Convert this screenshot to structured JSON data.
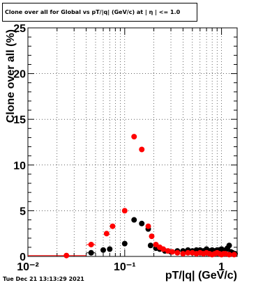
{
  "title": "Clone  over all for Global vs pT/|q| (GeV/c) at | η | <= 1.0",
  "timestamp": "Tue Dec 21 13:13:29 2021",
  "chart_data": {
    "type": "scatter",
    "xlabel": "pT/|q| (GeV/c)",
    "ylabel": "Clone  over all (%)",
    "xscale": "log",
    "xlim": [
      0.01,
      1.45
    ],
    "ylim": [
      0,
      25
    ],
    "grid": true,
    "x_ticks": [
      "10⁻²",
      "10⁻¹",
      "1"
    ],
    "y_ticks": [
      "0",
      "5",
      "10",
      "15",
      "20",
      "25"
    ],
    "series": [
      {
        "color": "#000000",
        "points": [
          {
            "x": 0.045,
            "y": 0.4,
            "xerr": [
              0.04,
              0.05
            ]
          },
          {
            "x": 0.06,
            "y": 0.7
          },
          {
            "x": 0.07,
            "y": 0.8
          },
          {
            "x": 0.1,
            "y": 1.4
          },
          {
            "x": 0.125,
            "y": 4.0
          },
          {
            "x": 0.15,
            "y": 3.6
          },
          {
            "x": 0.175,
            "y": 3.0
          },
          {
            "x": 0.185,
            "y": 1.2
          },
          {
            "x": 0.21,
            "y": 0.9
          },
          {
            "x": 0.23,
            "y": 0.8
          },
          {
            "x": 0.26,
            "y": 0.6
          },
          {
            "x": 0.3,
            "y": 0.5
          },
          {
            "x": 0.35,
            "y": 0.6
          },
          {
            "x": 0.4,
            "y": 0.6
          },
          {
            "x": 0.45,
            "y": 0.7
          },
          {
            "x": 0.5,
            "y": 0.6
          },
          {
            "x": 0.55,
            "y": 0.7
          },
          {
            "x": 0.6,
            "y": 0.7
          },
          {
            "x": 0.65,
            "y": 0.6
          },
          {
            "x": 0.7,
            "y": 0.8
          },
          {
            "x": 0.75,
            "y": 0.6
          },
          {
            "x": 0.8,
            "y": 0.7
          },
          {
            "x": 0.85,
            "y": 0.6
          },
          {
            "x": 0.9,
            "y": 0.7
          },
          {
            "x": 0.95,
            "y": 0.7
          },
          {
            "x": 1.0,
            "y": 0.8
          },
          {
            "x": 1.05,
            "y": 0.6
          },
          {
            "x": 1.1,
            "y": 0.7
          },
          {
            "x": 1.15,
            "y": 0.9
          },
          {
            "x": 1.2,
            "y": 1.2
          },
          {
            "x": 1.25,
            "y": 0.5
          },
          {
            "x": 1.3,
            "y": 0.4
          },
          {
            "x": 1.38,
            "y": 0.3
          }
        ]
      },
      {
        "color": "#ff0000",
        "points": [
          {
            "x": 0.025,
            "y": 0.1,
            "xerr": [
              0.01,
              0.04
            ]
          },
          {
            "x": 0.045,
            "y": 1.3,
            "xerr": [
              0.04,
              0.05
            ]
          },
          {
            "x": 0.065,
            "y": 2.5
          },
          {
            "x": 0.075,
            "y": 3.3
          },
          {
            "x": 0.1,
            "y": 5.0
          },
          {
            "x": 0.125,
            "y": 13.1
          },
          {
            "x": 0.15,
            "y": 11.7
          },
          {
            "x": 0.175,
            "y": 3.3
          },
          {
            "x": 0.19,
            "y": 2.2
          },
          {
            "x": 0.21,
            "y": 1.3
          },
          {
            "x": 0.23,
            "y": 1.0
          },
          {
            "x": 0.25,
            "y": 0.8
          },
          {
            "x": 0.28,
            "y": 0.6
          },
          {
            "x": 0.31,
            "y": 0.5
          },
          {
            "x": 0.35,
            "y": 0.4
          },
          {
            "x": 0.4,
            "y": 0.3
          },
          {
            "x": 0.45,
            "y": 0.4
          },
          {
            "x": 0.5,
            "y": 0.4
          },
          {
            "x": 0.55,
            "y": 0.3
          },
          {
            "x": 0.6,
            "y": 0.4
          },
          {
            "x": 0.65,
            "y": 0.3
          },
          {
            "x": 0.7,
            "y": 0.4
          },
          {
            "x": 0.75,
            "y": 0.3
          },
          {
            "x": 0.8,
            "y": 0.2
          },
          {
            "x": 0.85,
            "y": 0.3
          },
          {
            "x": 0.9,
            "y": 0.4
          },
          {
            "x": 0.95,
            "y": 0.3
          },
          {
            "x": 1.0,
            "y": 0.2
          },
          {
            "x": 1.05,
            "y": 0.3
          },
          {
            "x": 1.1,
            "y": 0.3
          },
          {
            "x": 1.2,
            "y": 0.2
          },
          {
            "x": 1.35,
            "y": 0.2
          }
        ]
      }
    ]
  }
}
